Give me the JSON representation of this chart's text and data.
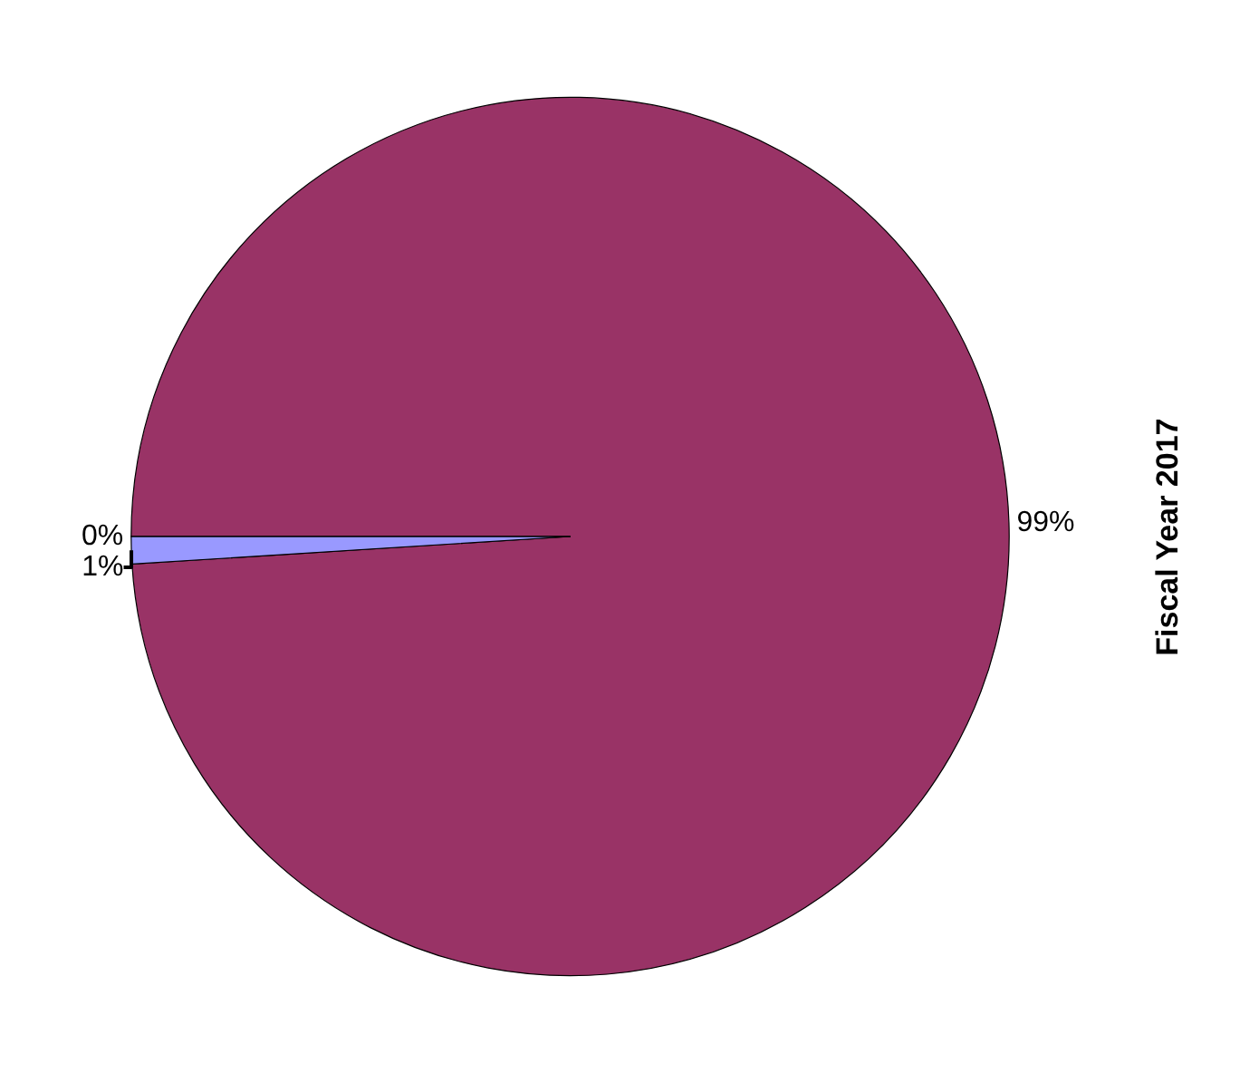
{
  "chart_data": {
    "type": "pie",
    "title": "Fiscal Year 2017",
    "categories": [
      null,
      null,
      null
    ],
    "values": [
      99,
      1,
      0
    ],
    "colors": [
      "#993366",
      "#9999ff",
      "#ff8080"
    ],
    "value_labels": [
      "99%",
      "1%",
      "0%"
    ],
    "legend": false
  }
}
